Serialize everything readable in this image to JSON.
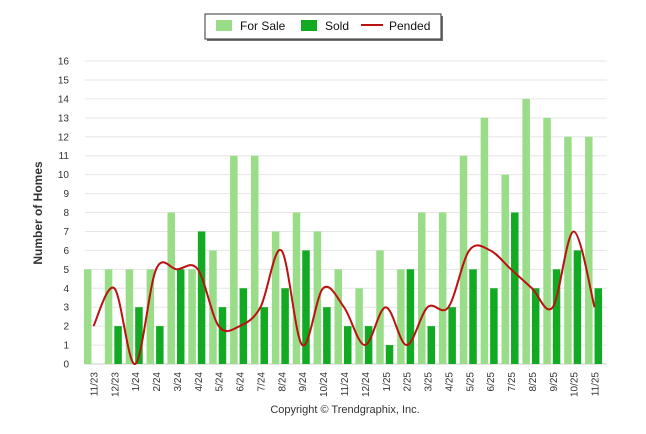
{
  "footer": "Copyright © Trendgraphix, Inc.",
  "chart_data": {
    "type": "bar",
    "title": "",
    "xlabel": "",
    "ylabel": "Number of Homes",
    "ylim": [
      0,
      16
    ],
    "yticks": [
      0,
      1,
      2,
      3,
      4,
      5,
      6,
      7,
      8,
      9,
      10,
      11,
      12,
      13,
      14,
      15,
      16
    ],
    "grid": true,
    "legend_position": "top-center",
    "categories": [
      "11/23",
      "12/23",
      "1/24",
      "2/24",
      "3/24",
      "4/24",
      "5/24",
      "6/24",
      "7/24",
      "8/24",
      "9/24",
      "10/24",
      "11/24",
      "12/24",
      "1/25",
      "2/25",
      "3/25",
      "4/25",
      "5/25",
      "6/25",
      "7/25",
      "8/25",
      "9/25",
      "10/25",
      "11/25"
    ],
    "series": [
      {
        "name": "For Sale",
        "type": "bar",
        "color": "#99dd88",
        "values": [
          5,
          5,
          5,
          5,
          8,
          5,
          6,
          11,
          11,
          7,
          8,
          7,
          5,
          4,
          6,
          5,
          8,
          8,
          11,
          13,
          10,
          14,
          13,
          12,
          12
        ]
      },
      {
        "name": "Sold",
        "type": "bar",
        "color": "#11aa22",
        "values": [
          0,
          2,
          3,
          2,
          5,
          7,
          3,
          4,
          3,
          4,
          6,
          3,
          2,
          2,
          1,
          5,
          2,
          3,
          5,
          4,
          8,
          4,
          5,
          6,
          4
        ]
      },
      {
        "name": "Pended",
        "type": "line",
        "color": "#bb1111",
        "values": [
          2,
          4,
          0,
          5,
          5,
          5,
          2,
          2,
          3,
          6,
          1,
          4,
          3,
          1,
          3,
          1,
          3,
          3,
          6,
          6,
          5,
          4,
          3,
          7,
          3
        ]
      }
    ]
  }
}
